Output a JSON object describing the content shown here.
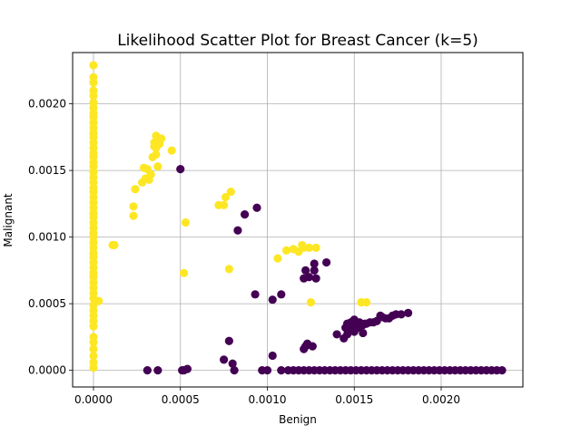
{
  "chart_data": {
    "type": "scatter",
    "title": "Likelihood Scatter Plot for Breast Cancer (k=5)",
    "xlabel": "Benign",
    "ylabel": "Malignant",
    "xlim": [
      -0.00012,
      0.00247
    ],
    "ylim": [
      -0.000125,
      0.002385
    ],
    "xticks": [
      0.0,
      0.0005,
      0.001,
      0.0015,
      0.002
    ],
    "xtick_labels": [
      "0.0000",
      "0.0005",
      "0.0010",
      "0.0015",
      "0.0020"
    ],
    "yticks": [
      0.0,
      0.0005,
      0.001,
      0.0015,
      0.002
    ],
    "ytick_labels": [
      "0.0000",
      "0.0005",
      "0.0010",
      "0.0015",
      "0.0020"
    ],
    "grid": true,
    "colors": {
      "class_0": "#440154",
      "class_1": "#fde725",
      "grid": "#b0b0b0"
    },
    "series": [
      {
        "color": "#fde725",
        "x": [
          0,
          0,
          0,
          0,
          0,
          0,
          0,
          0,
          0,
          0,
          0,
          0,
          0,
          0,
          0,
          0,
          0,
          0,
          0,
          0,
          0,
          0,
          0,
          0,
          0,
          0,
          0,
          0,
          0,
          0,
          0,
          0,
          0,
          0,
          0,
          0,
          0,
          0,
          0,
          0,
          0,
          0,
          0,
          0,
          0,
          0,
          0,
          0,
          0,
          0,
          0,
          0,
          0,
          0,
          0,
          0,
          3e-05,
          0.00011,
          0.00012,
          0.00023,
          0.00024,
          0.00023,
          0.00028,
          0.00029,
          0.0003,
          0.00031,
          0.00032,
          0.00033,
          0.00034,
          0.00035,
          0.00036,
          0.00036,
          0.00037,
          0.00038,
          0.00036,
          0.00037,
          0.00035,
          0.00039,
          0.00045,
          0.00052,
          0.00053,
          0.00072,
          0.00075,
          0.00076,
          0.00079,
          0.00078,
          0.00106,
          0.00111,
          0.00115,
          0.00118,
          0.0012,
          0.00121,
          0.00124,
          0.00128,
          0.00125,
          0.00154,
          0.00157
        ],
        "y": [
          0.00229,
          0.0022,
          0.00216,
          0.0021,
          0.00206,
          0.00201,
          0.00197,
          0.00193,
          0.0019,
          0.00186,
          0.00182,
          0.00178,
          0.00175,
          0.00171,
          0.00167,
          0.00163,
          0.0016,
          0.00156,
          0.00153,
          0.00149,
          0.00145,
          0.00141,
          0.00137,
          0.00134,
          0.0013,
          0.00126,
          0.00122,
          0.00118,
          0.00115,
          0.00111,
          0.00107,
          0.00103,
          0.001,
          0.00096,
          0.00092,
          0.00088,
          0.00085,
          0.00081,
          0.00077,
          0.00073,
          0.0007,
          0.00066,
          0.00062,
          0.00058,
          0.00054,
          0.00049,
          0.00045,
          0.00041,
          0.00037,
          0.00033,
          0.00025,
          0.00021,
          0.00016,
          0.00011,
          6e-05,
          2e-05,
          0.00052,
          0.00094,
          0.00094,
          0.00116,
          0.00136,
          0.00123,
          0.00141,
          0.00152,
          0.00144,
          0.00151,
          0.00143,
          0.00147,
          0.0016,
          0.00168,
          0.00176,
          0.00162,
          0.00174,
          0.0017,
          0.00167,
          0.00153,
          0.00171,
          0.00174,
          0.00165,
          0.00073,
          0.00111,
          0.00124,
          0.00124,
          0.0013,
          0.00134,
          0.00076,
          0.00084,
          0.0009,
          0.00091,
          0.00089,
          0.00094,
          0.00092,
          0.00092,
          0.00092,
          0.00051,
          0.00051,
          0.00051
        ]
      },
      {
        "color": "#440154",
        "x": [
          0.00031,
          0.00037,
          0.00051,
          0.00052,
          0.00054,
          0.0005,
          0.00075,
          0.00078,
          0.0008,
          0.00081,
          0.00083,
          0.00087,
          0.00094,
          0.00093,
          0.00097,
          0.001,
          0.00103,
          0.00103,
          0.00108,
          0.00108,
          0.00112,
          0.00115,
          0.00118,
          0.00121,
          0.00124,
          0.00127,
          0.0013,
          0.00133,
          0.00136,
          0.00139,
          0.00142,
          0.00145,
          0.00148,
          0.00151,
          0.00154,
          0.00157,
          0.0016,
          0.00163,
          0.00166,
          0.00169,
          0.00172,
          0.00175,
          0.00178,
          0.00181,
          0.00184,
          0.00187,
          0.0019,
          0.00193,
          0.00196,
          0.00199,
          0.00202,
          0.00205,
          0.00208,
          0.00211,
          0.00214,
          0.00217,
          0.0022,
          0.00223,
          0.00226,
          0.00229,
          0.00232,
          0.00235,
          0.00121,
          0.00122,
          0.00123,
          0.00126,
          0.00127,
          0.00128,
          0.00121,
          0.00122,
          0.00124,
          0.00127,
          0.00134,
          0.0014,
          0.00144,
          0.00145,
          0.00146,
          0.00148,
          0.00148,
          0.0015,
          0.00151,
          0.00152,
          0.00153,
          0.00154,
          0.00155,
          0.00156,
          0.00157,
          0.00159,
          0.00161,
          0.00163,
          0.00165,
          0.00166,
          0.00168,
          0.0017,
          0.00172,
          0.00174,
          0.00177,
          0.00181,
          0.00146,
          0.00148,
          0.0015,
          0.00152,
          0.0015,
          0.00153,
          0.00155
        ],
        "y": [
          0,
          0,
          0,
          0,
          1e-05,
          0.00151,
          8e-05,
          0.00022,
          5e-05,
          0,
          0.00105,
          0.00117,
          0.00122,
          0.00057,
          0,
          0,
          0.00053,
          0.00011,
          0.0,
          0.00057,
          0,
          0,
          0,
          0,
          0,
          0,
          0,
          0,
          0,
          0,
          0,
          0,
          0,
          0,
          0,
          0,
          0,
          0,
          0,
          0,
          0,
          0,
          0,
          0,
          0,
          0,
          0,
          0,
          0,
          0,
          0,
          0,
          0,
          0,
          0,
          0,
          0,
          0,
          0,
          0,
          0,
          0,
          0.00016,
          0.00018,
          0.0002,
          0.00018,
          0.0008,
          0.00069,
          0.00069,
          0.00075,
          0.0007,
          0.00075,
          0.00081,
          0.00027,
          0.00024,
          0.00032,
          0.00035,
          0.00034,
          0.00036,
          0.00033,
          0.00035,
          0.00035,
          0.00036,
          0.00034,
          0.00034,
          0.00035,
          0.00035,
          0.00036,
          0.00036,
          0.00037,
          0.00041,
          0.0004,
          0.00039,
          0.00039,
          0.00041,
          0.00042,
          0.00042,
          0.00043,
          0.00027,
          0.00031,
          0.00029,
          0.00035,
          0.00038,
          0.00032,
          0.00028
        ]
      }
    ]
  }
}
